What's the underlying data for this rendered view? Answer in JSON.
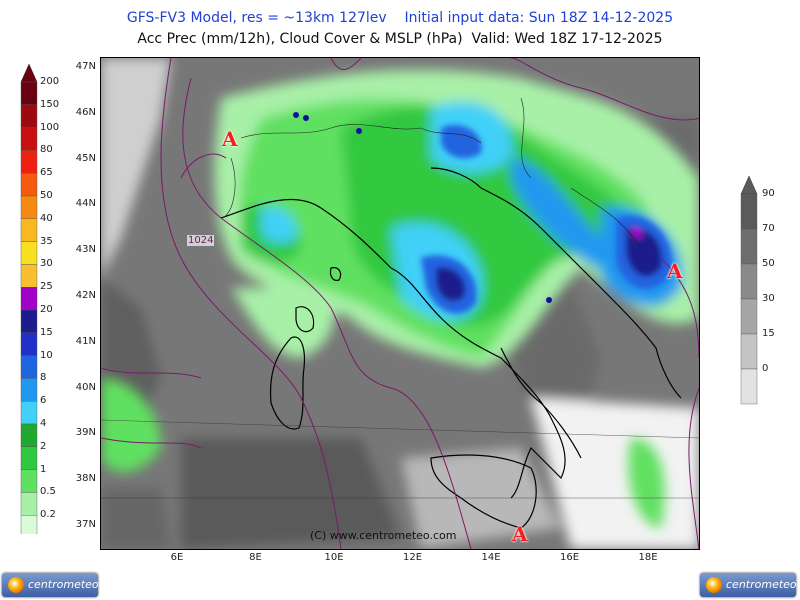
{
  "title_line1": "GFS-FV3 Model, res = ~13km 127lev    Initial input data: Sun 18Z 14-12-2025",
  "title_line2": "Acc Prec (mm/12h), Cloud Cover & MSLP (hPa)  Valid: Wed 18Z 17-12-2025",
  "lat_labels": [
    "47N",
    "46N",
    "45N",
    "44N",
    "43N",
    "42N",
    "41N",
    "40N",
    "39N",
    "38N",
    "37N"
  ],
  "lon_labels": [
    "6E",
    "8E",
    "10E",
    "12E",
    "14E",
    "16E",
    "18E"
  ],
  "precip_legend": {
    "labels": [
      "200",
      "150",
      "100",
      "80",
      "65",
      "50",
      "40",
      "35",
      "30",
      "25",
      "20",
      "15",
      "10",
      "8",
      "6",
      "4",
      "2",
      "1",
      "0.5",
      "0.2"
    ],
    "colors": [
      "#6b0010",
      "#9c0a10",
      "#c81010",
      "#f02010",
      "#f45a10",
      "#f68a10",
      "#f8b820",
      "#f8e020",
      "#f8c030",
      "#a000c8",
      "#1c1c8c",
      "#2030c8",
      "#2064e0",
      "#2098f0",
      "#40d0f8",
      "#20a830",
      "#30c840",
      "#60e060",
      "#a8f0a8",
      "#d8fcd8"
    ]
  },
  "cloud_legend": {
    "labels": [
      "90",
      "70",
      "50",
      "30",
      "15",
      "0"
    ],
    "colors": [
      "#5a5a5a",
      "#6e6e6e",
      "#8a8a8a",
      "#a6a6a6",
      "#c4c4c4",
      "#e2e2e2"
    ]
  },
  "isobar_label": "1024",
  "high_marker": "A",
  "copyright": "(C) www.centrometeo.com",
  "logo_text": "centrometeo"
}
